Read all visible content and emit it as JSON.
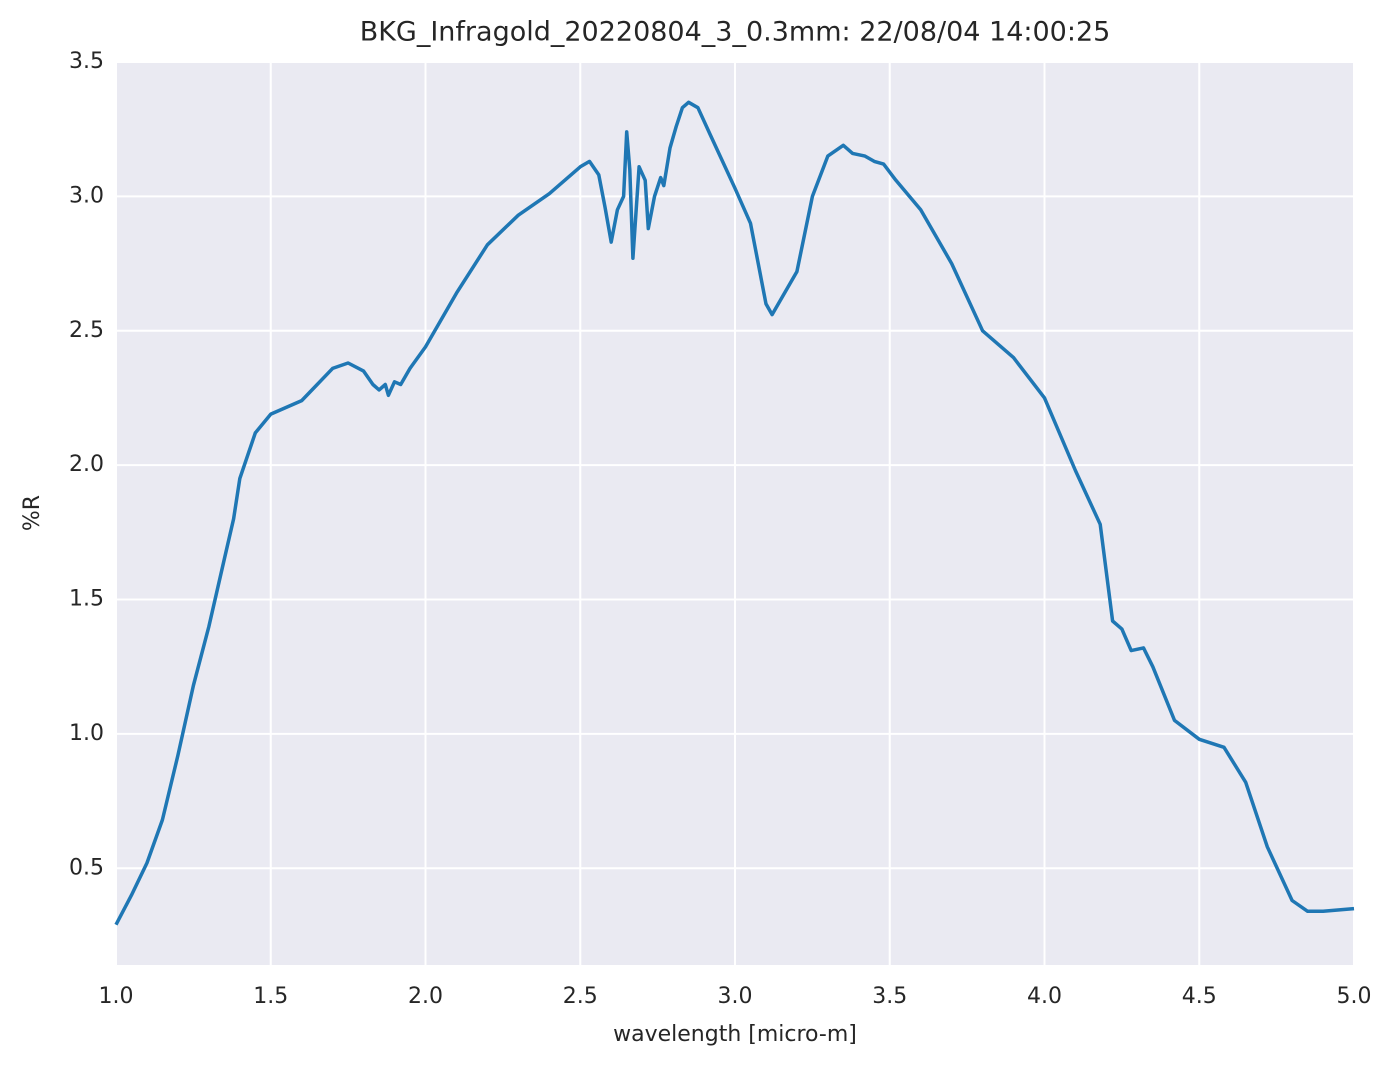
{
  "chart_data": {
    "type": "line",
    "title": "BKG_Infragold_20220804_3_0.3mm:  22/08/04 14:00:25",
    "x_label": "wavelength [micro-m]",
    "y_label": "%R",
    "color": "#1f77b4",
    "grid": true,
    "xlim": [
      1.0,
      5.0
    ],
    "ylim": [
      0.14,
      3.5
    ],
    "xticks": [
      {
        "value": 1,
        "label": "1.0"
      },
      1.5,
      {
        "value": 2,
        "label": "2.0"
      },
      2.5,
      {
        "value": 3,
        "label": "3.0"
      },
      3.5,
      {
        "value": 4,
        "label": "4.0"
      },
      4.5,
      {
        "value": 5,
        "label": "5.0"
      }
    ],
    "yticks": [
      0.5,
      {
        "value": 1,
        "label": "1.0"
      },
      1.5,
      {
        "value": 2,
        "label": "2.0"
      },
      2.5,
      {
        "value": 3,
        "label": "3.0"
      },
      3.5
    ],
    "x": [
      1.0,
      1.05,
      1.1,
      1.15,
      1.2,
      1.25,
      1.3,
      1.35,
      1.38,
      1.4,
      1.45,
      1.5,
      1.6,
      1.65,
      1.7,
      1.75,
      1.8,
      1.83,
      1.85,
      1.87,
      1.88,
      1.9,
      1.92,
      1.95,
      2.0,
      2.1,
      2.2,
      2.3,
      2.4,
      2.5,
      2.53,
      2.56,
      2.58,
      2.6,
      2.62,
      2.64,
      2.65,
      2.66,
      2.67,
      2.69,
      2.71,
      2.72,
      2.74,
      2.76,
      2.77,
      2.79,
      2.81,
      2.83,
      2.85,
      2.88,
      2.92,
      3.0,
      3.05,
      3.1,
      3.12,
      3.2,
      3.25,
      3.3,
      3.35,
      3.38,
      3.42,
      3.45,
      3.48,
      3.52,
      3.6,
      3.7,
      3.8,
      3.9,
      4.0,
      4.1,
      4.18,
      4.22,
      4.25,
      4.28,
      4.32,
      4.35,
      4.42,
      4.5,
      4.58,
      4.65,
      4.72,
      4.8,
      4.85,
      4.9,
      5.0
    ],
    "values": [
      0.29,
      0.4,
      0.52,
      0.68,
      0.92,
      1.18,
      1.4,
      1.65,
      1.8,
      1.95,
      2.12,
      2.19,
      2.24,
      2.3,
      2.36,
      2.38,
      2.35,
      2.3,
      2.28,
      2.3,
      2.26,
      2.31,
      2.3,
      2.36,
      2.44,
      2.64,
      2.82,
      2.93,
      3.01,
      3.11,
      3.13,
      3.08,
      2.96,
      2.83,
      2.95,
      3.0,
      3.24,
      3.1,
      2.77,
      3.11,
      3.06,
      2.88,
      3.0,
      3.07,
      3.04,
      3.18,
      3.26,
      3.33,
      3.35,
      3.33,
      3.23,
      3.03,
      2.9,
      2.6,
      2.56,
      2.72,
      3.0,
      3.15,
      3.19,
      3.16,
      3.15,
      3.13,
      3.12,
      3.06,
      2.95,
      2.75,
      2.5,
      2.4,
      2.25,
      1.98,
      1.78,
      1.42,
      1.39,
      1.31,
      1.32,
      1.25,
      1.05,
      0.98,
      0.95,
      0.82,
      0.58,
      0.38,
      0.34,
      0.34,
      0.35
    ]
  }
}
